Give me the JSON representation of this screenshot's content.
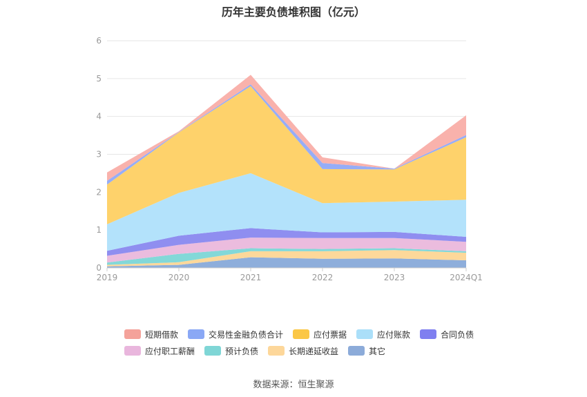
{
  "title": "历年主要负债堆积图（亿元）",
  "source": "数据来源：恒生聚源",
  "chart_data": {
    "type": "area",
    "stacked": true,
    "categories": [
      "2019",
      "2020",
      "2021",
      "2022",
      "2023",
      "2024Q1"
    ],
    "ylim": [
      0,
      6
    ],
    "yticks": [
      "0",
      "1",
      "2",
      "3",
      "4",
      "5",
      "6"
    ],
    "grid": true,
    "legend_position": "bottom",
    "series": [
      {
        "name": "其它",
        "color": "#8eaedb",
        "values": [
          0.04,
          0.08,
          0.28,
          0.24,
          0.25,
          0.2
        ]
      },
      {
        "name": "长期递延收益",
        "color": "#fdd89a",
        "values": [
          0.04,
          0.07,
          0.16,
          0.2,
          0.22,
          0.2
        ]
      },
      {
        "name": "预计负债",
        "color": "#83d8d8",
        "values": [
          0.06,
          0.22,
          0.08,
          0.06,
          0.05,
          0.04
        ]
      },
      {
        "name": "应付职工薪酬",
        "color": "#ebbcde",
        "values": [
          0.18,
          0.24,
          0.28,
          0.29,
          0.27,
          0.25
        ]
      },
      {
        "name": "合同负债",
        "color": "#8f8ef0",
        "values": [
          0.13,
          0.24,
          0.25,
          0.15,
          0.16,
          0.13
        ]
      },
      {
        "name": "应付账款",
        "color": "#b3e2fb",
        "values": [
          0.7,
          1.13,
          1.45,
          0.77,
          0.8,
          0.98
        ]
      },
      {
        "name": "应付票据",
        "color": "#fed26b",
        "values": [
          1.05,
          1.6,
          2.3,
          0.9,
          0.85,
          1.65
        ]
      },
      {
        "name": "交易性金融负债合计",
        "color": "#96adf7",
        "values": [
          0.1,
          0.01,
          0.05,
          0.16,
          0.02,
          0.06
        ]
      },
      {
        "name": "短期借款",
        "color": "#f9b2ac",
        "values": [
          0.22,
          0.02,
          0.25,
          0.15,
          0.0,
          0.52
        ]
      }
    ]
  },
  "legend": {
    "rows": [
      [
        "短期借款",
        "交易性金融负债合计",
        "应付票据",
        "应付账款",
        "合同负债"
      ],
      [
        "应付职工薪酬",
        "预计负债",
        "长期递延收益",
        "其它"
      ]
    ],
    "colors": {
      "短期借款": "#f4a29a",
      "交易性金融负债合计": "#8aa8f5",
      "应付票据": "#fbc746",
      "应付账款": "#abdff9",
      "合同负债": "#7f7ff0",
      "应付职工薪酬": "#e9b6dd",
      "预计负债": "#7fd6d6",
      "长期递延收益": "#fdd79a",
      "其它": "#8cabd9"
    }
  }
}
